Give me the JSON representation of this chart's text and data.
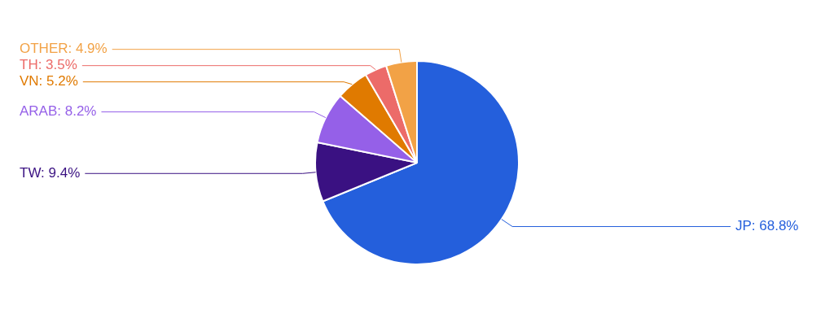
{
  "chart_data": {
    "type": "pie",
    "categories": [
      "JP",
      "TW",
      "ARAB",
      "VN",
      "TH",
      "OTHER"
    ],
    "values": [
      68.8,
      9.4,
      8.2,
      5.2,
      3.5,
      4.9
    ],
    "colors": [
      "#245fdc",
      "#3a1182",
      "#9560e8",
      "#e07a00",
      "#ec6b69",
      "#f2a246"
    ],
    "value_labels": [
      "68.8%",
      "9.4%",
      "8.2%",
      "5.2%",
      "3.5%",
      "4.9%"
    ],
    "legend": false
  }
}
